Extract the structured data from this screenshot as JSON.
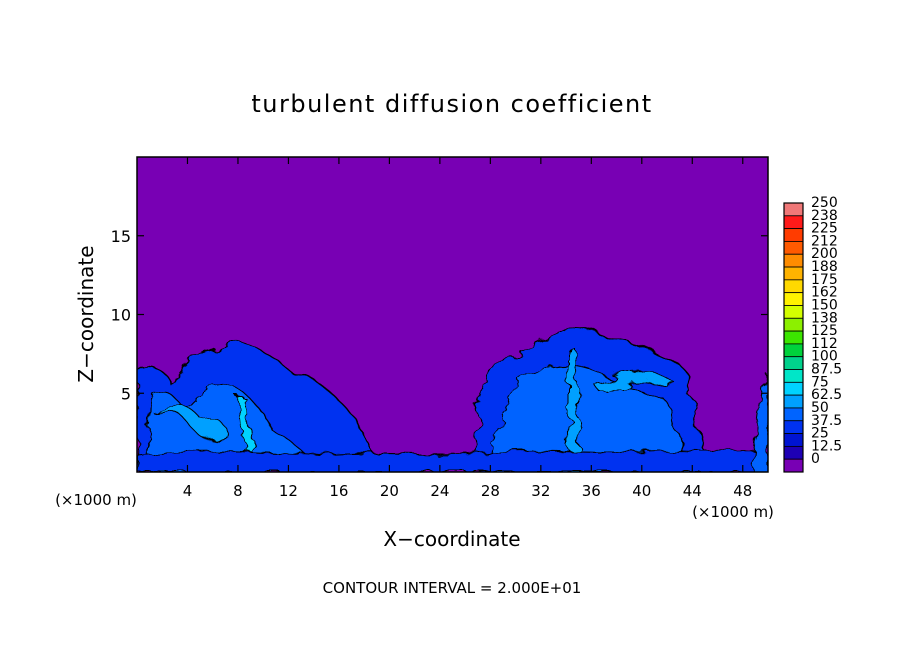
{
  "chart_data": {
    "type": "heatmap",
    "title": "turbulent diffusion coefficient",
    "xlabel": "X−coordinate",
    "ylabel": "Z−coordinate",
    "x_unit_left": "(×1000 m)",
    "x_unit_right": "(×1000 m)",
    "xlim": [
      0,
      50
    ],
    "ylim": [
      0,
      20
    ],
    "xticks": [
      4,
      8,
      12,
      16,
      20,
      24,
      28,
      32,
      36,
      40,
      44,
      48
    ],
    "yticks": [
      5,
      10,
      15
    ],
    "footer": "CONTOUR INTERVAL = 2.000E+01",
    "colorbar": {
      "labels": [
        "250",
        "238",
        "225",
        "212",
        "200",
        "188",
        "175",
        "162",
        "150",
        "138",
        "125",
        "112",
        "100",
        "87.5",
        "75",
        "62.5",
        "50",
        "37.5",
        "25",
        "12.5",
        "0"
      ],
      "colors": [
        "#f07878",
        "#ff1a1a",
        "#ff3c00",
        "#ff5a00",
        "#ff8c00",
        "#ffb300",
        "#ffd900",
        "#fff200",
        "#d4ff00",
        "#8cf000",
        "#3ce600",
        "#00d23c",
        "#00d28c",
        "#00e6c8",
        "#00d2ff",
        "#00a0ff",
        "#0064ff",
        "#0032f0",
        "#0014d2",
        "#1e00b4",
        "#7800b4"
      ]
    },
    "background_value": 0,
    "plume_regions": [
      {
        "x_range": [
          0,
          21
        ],
        "top_z": [
          6.2,
          7.8
        ],
        "peak_value": "87.5"
      },
      {
        "x_range": [
          27,
          42
        ],
        "top_z": [
          6.0,
          9.0
        ],
        "peak_value": "87.5"
      },
      {
        "x_range": [
          48,
          50
        ],
        "top_z": [
          5.0,
          6.0
        ],
        "peak_value": "62.5"
      }
    ]
  }
}
